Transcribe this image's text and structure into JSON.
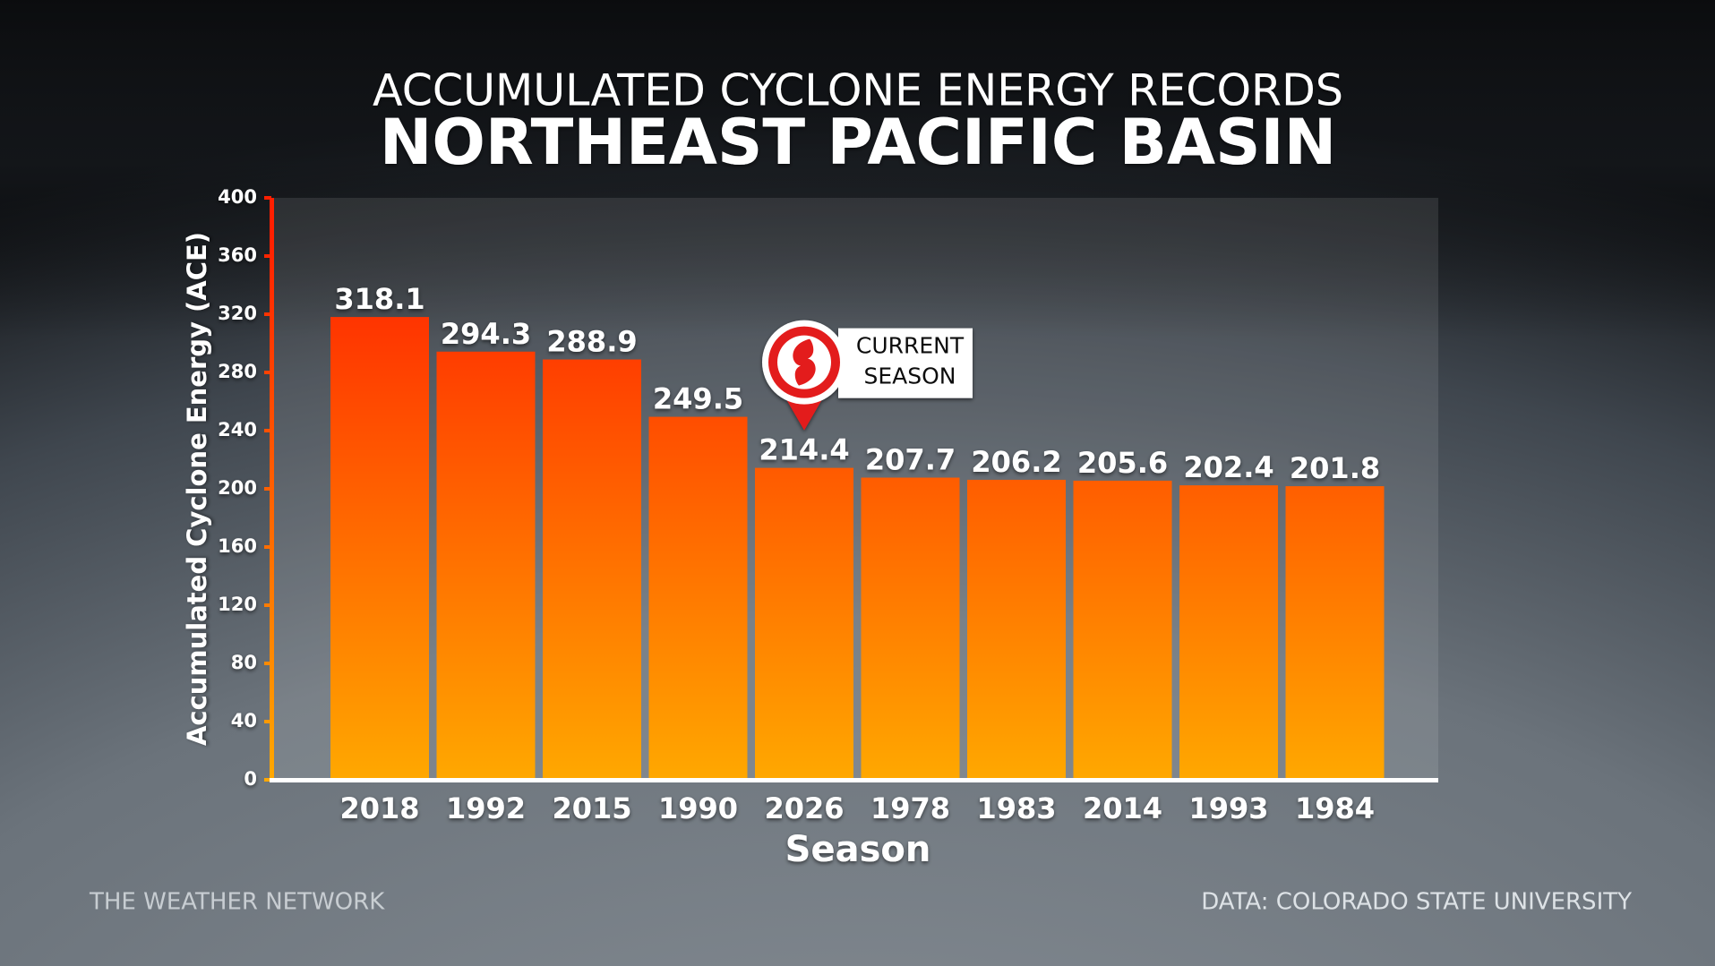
{
  "chart_data": {
    "type": "bar",
    "title": "ACCUMULATED CYCLONE ENERGY RECORDS",
    "subtitle": "NORTHEAST PACIFIC BASIN",
    "y_label": "Accumulated Cyclone Energy (ACE)",
    "x_label": "Season",
    "categories": [
      "2018",
      "1992",
      "2015",
      "1990",
      "2026",
      "1978",
      "1983",
      "2014",
      "1993",
      "1984"
    ],
    "values": [
      318.1,
      294.3,
      288.9,
      249.5,
      214.4,
      207.7,
      206.2,
      205.6,
      202.4,
      201.8
    ],
    "colors": {
      "top": "#ff1f00",
      "bottom": "#ffa800"
    },
    "ylim": [
      0,
      400
    ],
    "yticks": [
      0,
      40,
      80,
      120,
      160,
      200,
      240,
      280,
      320,
      360,
      400
    ],
    "annotation": {
      "category": "2026",
      "text": [
        "CURRENT",
        "SEASON"
      ]
    },
    "credit": "THE WEATHER NETWORK",
    "source": "DATA: COLORADO STATE UNIVERSITY"
  }
}
